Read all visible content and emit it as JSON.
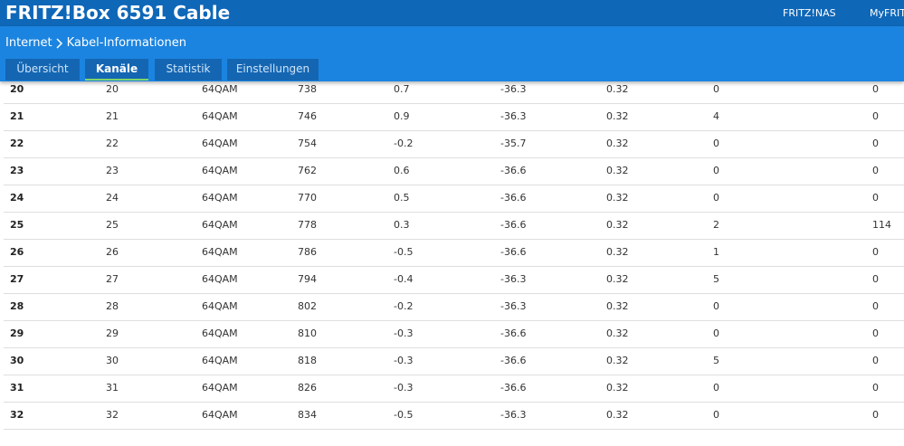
{
  "header": {
    "title": "FRITZ!Box 6591 Cable",
    "links": [
      "FRITZ!NAS",
      "MyFRITZ"
    ]
  },
  "breadcrumb": [
    "Internet",
    "Kabel-Informationen"
  ],
  "tabs": {
    "items": [
      "Übersicht",
      "Kanäle",
      "Statistik",
      "Einstellungen"
    ],
    "active": 1
  },
  "table": {
    "rows": [
      [
        "20",
        "20",
        "64QAM",
        "738",
        "0.7",
        "-36.3",
        "0.32",
        "0",
        "0"
      ],
      [
        "21",
        "21",
        "64QAM",
        "746",
        "0.9",
        "-36.3",
        "0.32",
        "4",
        "0"
      ],
      [
        "22",
        "22",
        "64QAM",
        "754",
        "-0.2",
        "-35.7",
        "0.32",
        "0",
        "0"
      ],
      [
        "23",
        "23",
        "64QAM",
        "762",
        "0.6",
        "-36.6",
        "0.32",
        "0",
        "0"
      ],
      [
        "24",
        "24",
        "64QAM",
        "770",
        "0.5",
        "-36.6",
        "0.32",
        "0",
        "0"
      ],
      [
        "25",
        "25",
        "64QAM",
        "778",
        "0.3",
        "-36.6",
        "0.32",
        "2",
        "114"
      ],
      [
        "26",
        "26",
        "64QAM",
        "786",
        "-0.5",
        "-36.6",
        "0.32",
        "1",
        "0"
      ],
      [
        "27",
        "27",
        "64QAM",
        "794",
        "-0.4",
        "-36.3",
        "0.32",
        "5",
        "0"
      ],
      [
        "28",
        "28",
        "64QAM",
        "802",
        "-0.2",
        "-36.3",
        "0.32",
        "0",
        "0"
      ],
      [
        "29",
        "29",
        "64QAM",
        "810",
        "-0.3",
        "-36.6",
        "0.32",
        "0",
        "0"
      ],
      [
        "30",
        "30",
        "64QAM",
        "818",
        "-0.3",
        "-36.6",
        "0.32",
        "5",
        "0"
      ],
      [
        "31",
        "31",
        "64QAM",
        "826",
        "-0.3",
        "-36.6",
        "0.32",
        "0",
        "0"
      ],
      [
        "32",
        "32",
        "64QAM",
        "834",
        "-0.5",
        "-36.3",
        "0.32",
        "0",
        "0"
      ]
    ]
  }
}
